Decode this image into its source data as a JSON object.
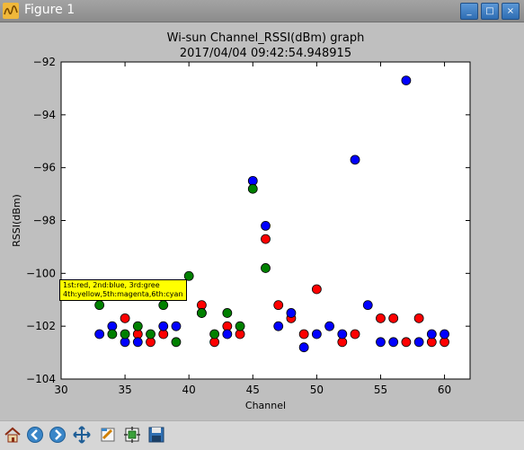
{
  "window": {
    "title": "Figure 1",
    "buttons": {
      "minimize": "_",
      "maximize": "□",
      "close": "×"
    }
  },
  "chart_data": {
    "type": "scatter",
    "title": "Wi-sun Channel_RSSI(dBm) graph",
    "subtitle": "2017/04/04 09:42:54.948915",
    "xlabel": "Channel",
    "ylabel": "RSSI(dBm)",
    "xlim": [
      30,
      62
    ],
    "ylim": [
      -104,
      -92
    ],
    "xticks": [
      30,
      35,
      40,
      45,
      50,
      55,
      60
    ],
    "yticks": [
      -104,
      -102,
      -100,
      -98,
      -96,
      -94,
      -92
    ],
    "grid": false,
    "legend_text": [
      "1st:red, 2nd:blue, 3rd:gree",
      "4th:yellow,5th:magenta,6th:cyan"
    ],
    "series": [
      {
        "color": "#ff0000",
        "points": [
          [
            35,
            -101.7
          ],
          [
            36,
            -102.3
          ],
          [
            37,
            -102.6
          ],
          [
            38,
            -102.3
          ],
          [
            41,
            -101.2
          ],
          [
            42,
            -102.6
          ],
          [
            43,
            -102.0
          ],
          [
            44,
            -102.3
          ],
          [
            46,
            -98.7
          ],
          [
            47,
            -101.2
          ],
          [
            48,
            -101.7
          ],
          [
            49,
            -102.3
          ],
          [
            50,
            -100.6
          ],
          [
            52,
            -102.6
          ],
          [
            53,
            -102.3
          ],
          [
            55,
            -101.7
          ],
          [
            56,
            -101.7
          ],
          [
            57,
            -102.6
          ],
          [
            58,
            -101.7
          ],
          [
            59,
            -102.6
          ],
          [
            60,
            -102.6
          ]
        ]
      },
      {
        "color": "#0000ff",
        "points": [
          [
            33,
            -102.3
          ],
          [
            34,
            -102.0
          ],
          [
            35,
            -102.6
          ],
          [
            36,
            -102.6
          ],
          [
            38,
            -102.0
          ],
          [
            39,
            -102.0
          ],
          [
            41,
            -101.5
          ],
          [
            43,
            -102.3
          ],
          [
            45,
            -96.5
          ],
          [
            46,
            -98.2
          ],
          [
            47,
            -102.0
          ],
          [
            48,
            -101.5
          ],
          [
            49,
            -102.8
          ],
          [
            50,
            -102.3
          ],
          [
            51,
            -102.0
          ],
          [
            52,
            -102.3
          ],
          [
            53,
            -95.7
          ],
          [
            54,
            -101.2
          ],
          [
            55,
            -102.6
          ],
          [
            56,
            -102.6
          ],
          [
            57,
            -92.7
          ],
          [
            58,
            -102.6
          ],
          [
            59,
            -102.3
          ],
          [
            60,
            -102.3
          ]
        ]
      },
      {
        "color": "#008000",
        "points": [
          [
            33,
            -101.2
          ],
          [
            34,
            -102.3
          ],
          [
            35,
            -102.3
          ],
          [
            36,
            -102.0
          ],
          [
            37,
            -102.3
          ],
          [
            38,
            -101.2
          ],
          [
            39,
            -102.6
          ],
          [
            40,
            -100.1
          ],
          [
            41,
            -101.5
          ],
          [
            42,
            -102.3
          ],
          [
            43,
            -101.5
          ],
          [
            44,
            -102.0
          ],
          [
            45,
            -96.8
          ],
          [
            46,
            -99.8
          ]
        ]
      }
    ]
  },
  "toolbar": {
    "buttons": [
      {
        "name": "home",
        "icon": "home-icon"
      },
      {
        "name": "back",
        "icon": "arrow-left-icon"
      },
      {
        "name": "forward",
        "icon": "arrow-right-icon"
      },
      {
        "name": "pan",
        "icon": "pan-arrows-icon"
      },
      {
        "name": "zoom",
        "icon": "zoom-rect-icon"
      },
      {
        "name": "configure",
        "icon": "subplots-icon"
      },
      {
        "name": "save",
        "icon": "save-disk-icon"
      }
    ]
  }
}
